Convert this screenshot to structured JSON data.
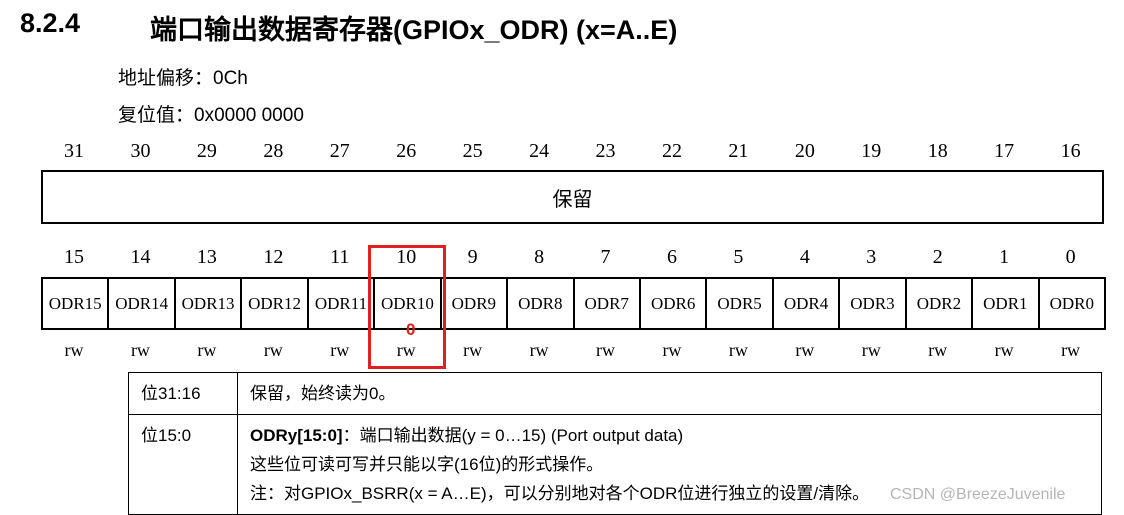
{
  "header": {
    "number": "8.2.4",
    "title": "端口输出数据寄存器(GPIOx_ODR) (x=A..E)"
  },
  "offset": "地址偏移：0Ch",
  "reset_value": "复位值：0x0000 0000",
  "register": {
    "upper_bits": [
      31,
      30,
      29,
      28,
      27,
      26,
      25,
      24,
      23,
      22,
      21,
      20,
      19,
      18,
      17,
      16
    ],
    "upper_field": "保留",
    "lower_bits": [
      15,
      14,
      13,
      12,
      11,
      10,
      9,
      8,
      7,
      6,
      5,
      4,
      3,
      2,
      1,
      0
    ],
    "fields": [
      "ODR15",
      "ODR14",
      "ODR13",
      "ODR12",
      "ODR11",
      "ODR10",
      "ODR9",
      "ODR8",
      "ODR7",
      "ODR6",
      "ODR5",
      "ODR4",
      "ODR3",
      "ODR2",
      "ODR1",
      "ODR0"
    ],
    "access": [
      "rw",
      "rw",
      "rw",
      "rw",
      "rw",
      "rw",
      "rw",
      "rw",
      "rw",
      "rw",
      "rw",
      "rw",
      "rw",
      "rw",
      "rw",
      "rw"
    ],
    "annotation": "0"
  },
  "table": {
    "rows": [
      {
        "bits": "位31:16",
        "desc": [
          "保留，始终读为0。"
        ]
      },
      {
        "bits": "位15:0",
        "field": "ODRy[15:0]",
        "desc": [
          "：端口输出数据(y = 0…15) (Port output data)",
          "这些位可读可写并只能以字(16位)的形式操作。",
          "注：对GPIOx_BSRR(x = A…E)，可以分别地对各个ODR位进行独立的设置/清除。"
        ]
      }
    ]
  },
  "watermark": "CSDN @BreezeJuvenile"
}
